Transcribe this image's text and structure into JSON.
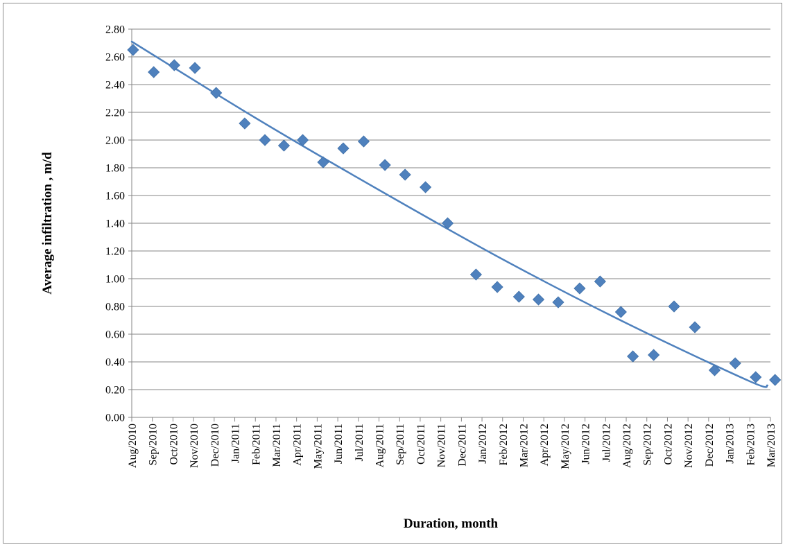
{
  "chart_data": {
    "type": "scatter",
    "title": "",
    "xlabel": "Duration, month",
    "ylabel": "Average infiltration , m/d",
    "x_tick_labels": [
      "Aug/2010",
      "Sep/2010",
      "Oct/2010",
      "Nov/2010",
      "Dec/2010",
      "Jan/2011",
      "Feb/2011",
      "Mar/2011",
      "Apr/2011",
      "May/2011",
      "Jun/2011",
      "Jul/2011",
      "Aug/2011",
      "Sep/2011",
      "Oct/2011",
      "Nov/2011",
      "Dec/2011",
      "Jan/2012",
      "Feb/2012",
      "Mar/2012",
      "Apr/2012",
      "May/2012",
      "Jun/2012",
      "Jul/2012",
      "Aug/2012",
      "Sep/2012",
      "Oct/2012",
      "Nov/2012",
      "Dec/2012",
      "Jan/2013",
      "Feb/2013",
      "Mar/2013"
    ],
    "y_tick_labels": [
      "0.00",
      "0.20",
      "0.40",
      "0.60",
      "0.80",
      "1.00",
      "1.20",
      "1.40",
      "1.60",
      "1.80",
      "2.00",
      "2.20",
      "2.40",
      "2.60",
      "2.80"
    ],
    "ylim": [
      0,
      2.8
    ],
    "grid": true,
    "series": [
      {
        "marker": "diamond",
        "color": "#4F81BD",
        "points": [
          {
            "x": "2010-08-03",
            "y": 2.65
          },
          {
            "x": "2010-09-03",
            "y": 2.49
          },
          {
            "x": "2010-10-03",
            "y": 2.54
          },
          {
            "x": "2010-11-03",
            "y": 2.52
          },
          {
            "x": "2010-12-04",
            "y": 2.34
          },
          {
            "x": "2011-01-16",
            "y": 2.12
          },
          {
            "x": "2011-02-14",
            "y": 2.0
          },
          {
            "x": "2011-03-13",
            "y": 1.96
          },
          {
            "x": "2011-04-10",
            "y": 2.0
          },
          {
            "x": "2011-05-10",
            "y": 1.84
          },
          {
            "x": "2011-06-09",
            "y": 1.94
          },
          {
            "x": "2011-07-09",
            "y": 1.99
          },
          {
            "x": "2011-08-10",
            "y": 1.82
          },
          {
            "x": "2011-09-09",
            "y": 1.75
          },
          {
            "x": "2011-10-09",
            "y": 1.66
          },
          {
            "x": "2011-11-11",
            "y": 1.4
          },
          {
            "x": "2011-12-23",
            "y": 1.03
          },
          {
            "x": "2012-01-24",
            "y": 0.94
          },
          {
            "x": "2012-02-24",
            "y": 0.87
          },
          {
            "x": "2012-03-24",
            "y": 0.85
          },
          {
            "x": "2012-04-22",
            "y": 0.83
          },
          {
            "x": "2012-05-24",
            "y": 0.93
          },
          {
            "x": "2012-06-23",
            "y": 0.98
          },
          {
            "x": "2012-07-24",
            "y": 0.76
          },
          {
            "x": "2012-08-11",
            "y": 0.44
          },
          {
            "x": "2012-09-11",
            "y": 0.45
          },
          {
            "x": "2012-10-11",
            "y": 0.8
          },
          {
            "x": "2012-11-11",
            "y": 0.65
          },
          {
            "x": "2012-12-10",
            "y": 0.34
          },
          {
            "x": "2013-01-10",
            "y": 0.39
          },
          {
            "x": "2013-02-09",
            "y": 0.29
          },
          {
            "x": "2013-03-08",
            "y": 0.27
          }
        ]
      }
    ],
    "trendline": {
      "type": "polynomial",
      "color": "#4F81BD",
      "points": [
        {
          "x": "2010-08-01",
          "y": 2.71
        },
        {
          "x": "2011-02-01",
          "y": 2.16
        },
        {
          "x": "2011-08-01",
          "y": 1.64
        },
        {
          "x": "2012-02-01",
          "y": 1.14
        },
        {
          "x": "2012-08-01",
          "y": 0.68
        },
        {
          "x": "2013-02-01",
          "y": 0.26
        },
        {
          "x": "2013-02-25",
          "y": 0.23
        }
      ]
    }
  }
}
